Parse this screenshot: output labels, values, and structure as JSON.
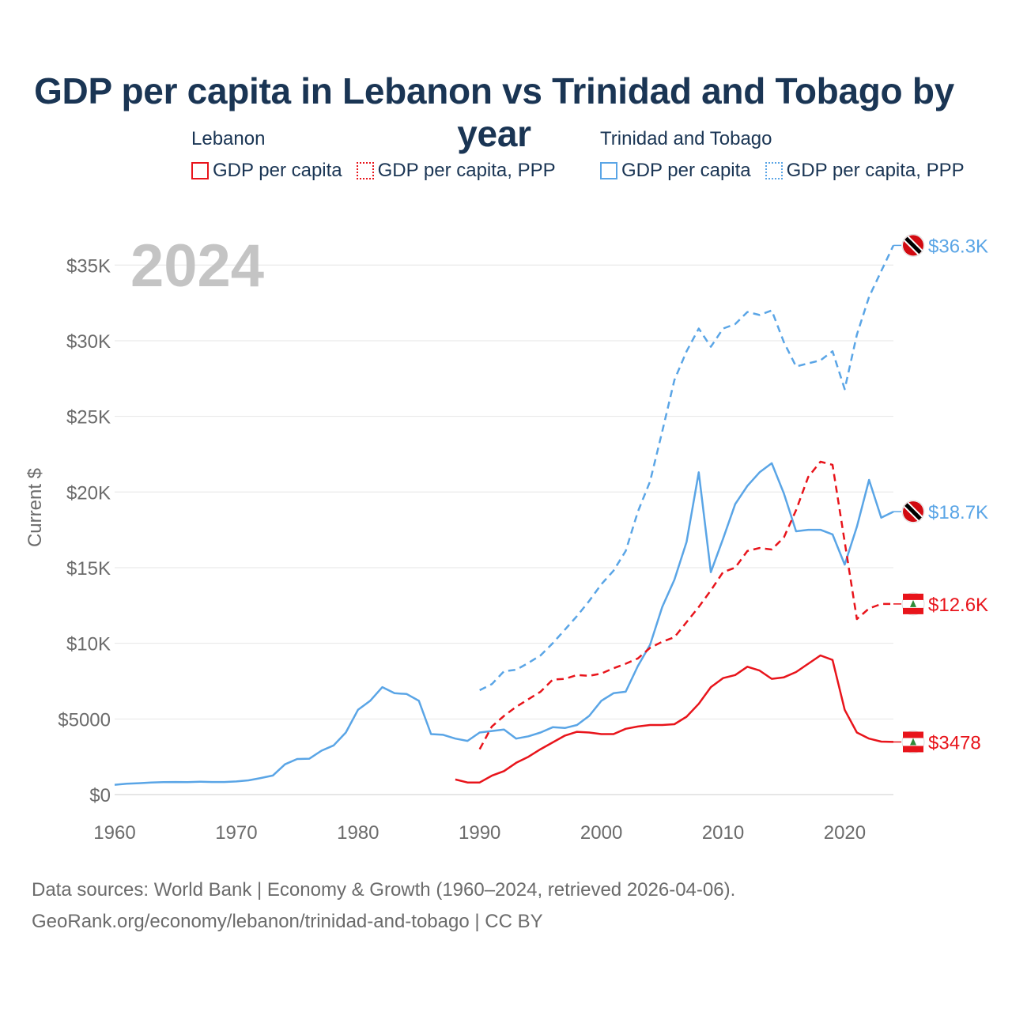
{
  "title": "GDP per capita in Lebanon vs Trinidad and Tobago by year",
  "legend": {
    "groups": [
      {
        "name": "Lebanon",
        "color": "#e8141b",
        "items": [
          {
            "label": "GDP per capita",
            "style": "solid"
          },
          {
            "label": "GDP per capita, PPP",
            "style": "dotted"
          }
        ]
      },
      {
        "name": "Trinidad and Tobago",
        "color": "#5aa5e6",
        "items": [
          {
            "label": "GDP per capita",
            "style": "solid"
          },
          {
            "label": "GDP per capita, PPP",
            "style": "dotted"
          }
        ]
      }
    ]
  },
  "footer": {
    "line1": "Data sources: World Bank | Economy & Growth (1960–2024, retrieved 2026-04-06).",
    "line2": "GeoRank.org/economy/lebanon/trinidad-and-tobago | CC BY"
  },
  "chart_data": {
    "type": "line",
    "title": "GDP per capita in Lebanon vs Trinidad and Tobago by year",
    "year_label": "2024",
    "ylabel": "Current $",
    "xlabel": "",
    "xlim": [
      1960,
      2024
    ],
    "ylim": [
      0,
      37000
    ],
    "x_ticks": [
      1960,
      1970,
      1980,
      1990,
      2000,
      2010,
      2020
    ],
    "y_ticks": [
      {
        "value": 0,
        "label": "$0"
      },
      {
        "value": 5000,
        "label": "$5000"
      },
      {
        "value": 10000,
        "label": "$10K"
      },
      {
        "value": 15000,
        "label": "$15K"
      },
      {
        "value": 20000,
        "label": "$20K"
      },
      {
        "value": 25000,
        "label": "$25K"
      },
      {
        "value": 30000,
        "label": "$30K"
      },
      {
        "value": 35000,
        "label": "$35K"
      }
    ],
    "series": [
      {
        "name": "Trinidad and Tobago GDP per capita, PPP",
        "country": "Trinidad and Tobago",
        "color": "#5aa5e6",
        "dash": "dashed",
        "end_label": "$36.3K",
        "flag": "trinidad",
        "x": [
          1990,
          1991,
          1992,
          1993,
          1994,
          1995,
          1996,
          1997,
          1998,
          1999,
          2000,
          2001,
          2002,
          2003,
          2004,
          2005,
          2006,
          2007,
          2008,
          2009,
          2010,
          2011,
          2012,
          2013,
          2014,
          2015,
          2016,
          2017,
          2018,
          2019,
          2020,
          2021,
          2022,
          2023,
          2024
        ],
        "y": [
          6900,
          7300,
          8150,
          8250,
          8700,
          9200,
          10000,
          10900,
          11800,
          12800,
          13900,
          14800,
          16100,
          18700,
          20700,
          24000,
          27400,
          29300,
          30800,
          29600,
          30800,
          31100,
          31900,
          31700,
          32000,
          29900,
          28300,
          28500,
          28700,
          29300,
          26800,
          30400,
          32900,
          34600,
          36300
        ]
      },
      {
        "name": "Trinidad and Tobago GDP per capita",
        "country": "Trinidad and Tobago",
        "color": "#5aa5e6",
        "dash": "solid",
        "end_label": "$18.7K",
        "flag": "trinidad",
        "x": [
          1960,
          1961,
          1962,
          1963,
          1964,
          1965,
          1966,
          1967,
          1968,
          1969,
          1970,
          1971,
          1972,
          1973,
          1974,
          1975,
          1976,
          1977,
          1978,
          1979,
          1980,
          1981,
          1982,
          1983,
          1984,
          1985,
          1986,
          1987,
          1988,
          1989,
          1990,
          1991,
          1992,
          1993,
          1994,
          1995,
          1996,
          1997,
          1998,
          1999,
          2000,
          2001,
          2002,
          2003,
          2004,
          2005,
          2006,
          2007,
          2008,
          2009,
          2010,
          2011,
          2012,
          2013,
          2014,
          2015,
          2016,
          2017,
          2018,
          2019,
          2020,
          2021,
          2022,
          2023,
          2024
        ],
        "y": [
          650,
          720,
          750,
          800,
          820,
          830,
          820,
          850,
          830,
          830,
          870,
          940,
          1090,
          1260,
          2000,
          2350,
          2370,
          2900,
          3250,
          4100,
          5600,
          6200,
          7100,
          6700,
          6650,
          6200,
          4000,
          3950,
          3700,
          3550,
          4100,
          4200,
          4300,
          3700,
          3850,
          4100,
          4450,
          4400,
          4600,
          5200,
          6200,
          6700,
          6800,
          8500,
          9900,
          12400,
          14200,
          16700,
          21300,
          14700,
          16900,
          19200,
          20400,
          21300,
          21900,
          19900,
          17400,
          17500,
          17500,
          17200,
          15200,
          17700,
          20800,
          18300,
          18700
        ]
      },
      {
        "name": "Lebanon GDP per capita, PPP",
        "country": "Lebanon",
        "color": "#e8141b",
        "dash": "dashed",
        "end_label": "$12.6K",
        "flag": "lebanon",
        "x": [
          1990,
          1991,
          1992,
          1993,
          1994,
          1995,
          1996,
          1997,
          1998,
          1999,
          2000,
          2001,
          2002,
          2003,
          2004,
          2005,
          2006,
          2007,
          2008,
          2009,
          2010,
          2011,
          2012,
          2013,
          2014,
          2015,
          2016,
          2017,
          2018,
          2019,
          2020,
          2021,
          2022,
          2023,
          2024
        ],
        "y": [
          3000,
          4500,
          5200,
          5800,
          6300,
          6800,
          7600,
          7650,
          7900,
          7850,
          8000,
          8350,
          8650,
          9000,
          9700,
          10100,
          10400,
          11400,
          12400,
          13500,
          14700,
          15000,
          16100,
          16300,
          16200,
          17000,
          18800,
          21000,
          22000,
          21800,
          16700,
          11600,
          12300,
          12600,
          12600
        ]
      },
      {
        "name": "Lebanon GDP per capita",
        "country": "Lebanon",
        "color": "#e8141b",
        "dash": "solid",
        "end_label": "$3478",
        "flag": "lebanon",
        "x": [
          1988,
          1989,
          1990,
          1991,
          1992,
          1993,
          1994,
          1995,
          1996,
          1997,
          1998,
          1999,
          2000,
          2001,
          2002,
          2003,
          2004,
          2005,
          2006,
          2007,
          2008,
          2009,
          2010,
          2011,
          2012,
          2013,
          2014,
          2015,
          2016,
          2017,
          2018,
          2019,
          2020,
          2021,
          2022,
          2023,
          2024
        ],
        "y": [
          1000,
          800,
          800,
          1250,
          1550,
          2100,
          2500,
          3000,
          3450,
          3900,
          4150,
          4100,
          4000,
          4000,
          4350,
          4500,
          4600,
          4600,
          4650,
          5150,
          6000,
          7100,
          7700,
          7900,
          8450,
          8200,
          7650,
          7750,
          8100,
          8650,
          9200,
          8900,
          5600,
          4100,
          3700,
          3500,
          3478
        ]
      }
    ]
  }
}
